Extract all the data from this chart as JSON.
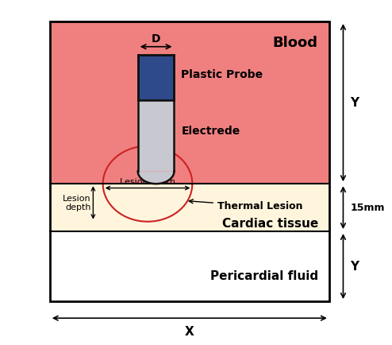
{
  "blood_color": "#F08080",
  "cardiac_color": "#FFF5DC",
  "pericardial_color": "#FFFFFF",
  "probe_blue_color": "#2E4A8A",
  "probe_gray_color": "#C8C8D0",
  "probe_outline_color": "#111111",
  "lesion_color": "#CC2222",
  "text_color": "#000000",
  "title": "Blood",
  "cardiac_label": "Cardiac tissue",
  "pericardial_label": "Pericardial fluid",
  "plastic_probe_label": "Plastic Probe",
  "electrode_label": "Electrede",
  "lesion_width_label": "Lesion width",
  "thermal_lesion_label": "Thermal Lesion",
  "x_label": "X",
  "y_label": "Y",
  "mm_label": "15mm",
  "D_label": "D"
}
